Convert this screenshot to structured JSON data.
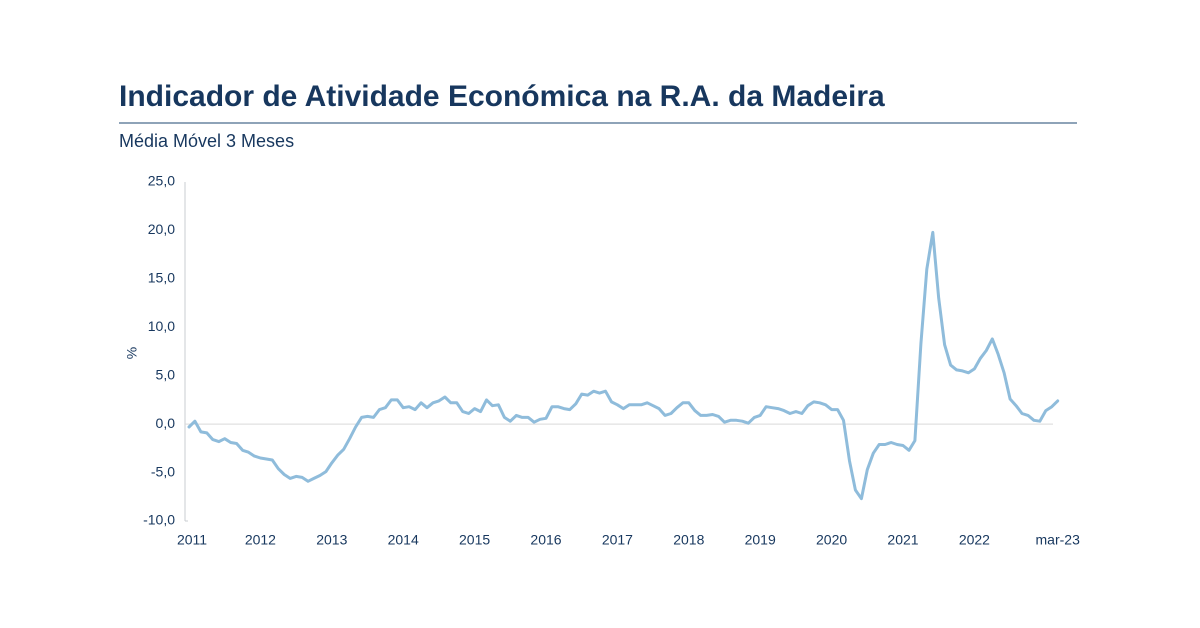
{
  "header": {
    "title": "Indicador de Atividade Económica na R.A. da Madeira",
    "subtitle": "Média Móvel 3 Meses"
  },
  "colors": {
    "title": "#17375e",
    "rule": "#8ea3b8",
    "series": "#8fbcdb",
    "axis": "#c8ccd0",
    "zero_line": "#d9d9d9"
  },
  "chart_data": {
    "type": "line",
    "ylabel": "%",
    "xlabel": "",
    "ylim": [
      -10,
      25
    ],
    "yticks": [
      "-10,0",
      "-5,0",
      "0,0",
      "5,0",
      "10,0",
      "15,0",
      "20,0",
      "25,0"
    ],
    "ytick_values": [
      -10,
      -5,
      0,
      5,
      10,
      15,
      20,
      25
    ],
    "xticks": [
      "2011",
      "2012",
      "2013",
      "2014",
      "2015",
      "2016",
      "2017",
      "2018",
      "2019",
      "2020",
      "2021",
      "2022",
      "mar-23"
    ],
    "xtick_months": [
      0,
      12,
      24,
      36,
      48,
      60,
      72,
      84,
      96,
      108,
      120,
      132,
      146
    ],
    "grid": false,
    "legend": "none",
    "start": "2011-01",
    "end": "2023-03",
    "series": [
      {
        "name": "",
        "values": [
          -0.3,
          0.3,
          -0.8,
          -0.9,
          -1.6,
          -1.8,
          -1.5,
          -1.9,
          -2.0,
          -2.7,
          -2.9,
          -3.3,
          -3.5,
          -3.6,
          -3.7,
          -4.6,
          -5.2,
          -5.6,
          -5.4,
          -5.5,
          -5.9,
          -5.6,
          -5.3,
          -4.9,
          -4.0,
          -3.2,
          -2.6,
          -1.5,
          -0.3,
          0.7,
          0.8,
          0.7,
          1.5,
          1.7,
          2.5,
          2.5,
          1.7,
          1.8,
          1.5,
          2.2,
          1.7,
          2.2,
          2.4,
          2.8,
          2.2,
          2.2,
          1.3,
          1.1,
          1.6,
          1.3,
          2.5,
          1.9,
          2.0,
          0.7,
          0.3,
          0.9,
          0.7,
          0.7,
          0.2,
          0.5,
          0.6,
          1.8,
          1.8,
          1.6,
          1.5,
          2.1,
          3.1,
          3.0,
          3.4,
          3.2,
          3.4,
          2.3,
          2.0,
          1.6,
          2.0,
          2.0,
          2.0,
          2.2,
          1.9,
          1.6,
          0.9,
          1.1,
          1.7,
          2.2,
          2.2,
          1.4,
          0.9,
          0.9,
          1.0,
          0.8,
          0.2,
          0.4,
          0.4,
          0.3,
          0.1,
          0.7,
          0.9,
          1.8,
          1.7,
          1.6,
          1.4,
          1.1,
          1.3,
          1.1,
          1.9,
          2.3,
          2.2,
          2.0,
          1.5,
          1.5,
          0.4,
          -3.8,
          -6.8,
          -7.7,
          -4.7,
          -3.0,
          -2.1,
          -2.1,
          -1.9,
          -2.1,
          -2.2,
          -2.7,
          -1.7,
          8.3,
          16.0,
          19.8,
          13.0,
          8.2,
          6.1,
          5.6,
          5.5,
          5.3,
          5.7,
          6.8,
          7.6,
          8.8,
          7.2,
          5.3,
          2.6,
          1.9,
          1.1,
          0.9,
          0.4,
          0.3,
          1.4,
          1.8,
          2.4
        ]
      }
    ]
  }
}
